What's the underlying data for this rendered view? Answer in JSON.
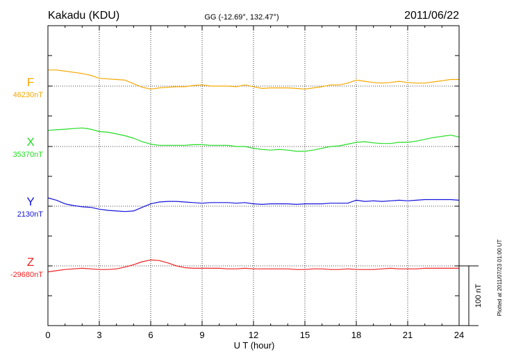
{
  "header": {
    "station": "Kakadu (KDU)",
    "coords": "GG (-12.69°, 132.47°)",
    "date": "2011/06/22"
  },
  "footer": {
    "plotted": "Plotted at 2011/07/23 01:00 UT"
  },
  "scale_bar": {
    "label": "100 nT",
    "nT": 100
  },
  "chart_data": {
    "type": "line",
    "xlabel": "U T (hour)",
    "xlim": [
      0,
      24
    ],
    "xticks": [
      0,
      3,
      6,
      9,
      12,
      15,
      18,
      21,
      24
    ],
    "grid": true,
    "series": [
      {
        "name": "F",
        "baseline_label": "46230nT",
        "baseline_nT": 46230,
        "color": "#f5a800",
        "x": [
          0,
          0.5,
          1,
          1.5,
          2,
          2.5,
          3,
          3.5,
          4,
          4.5,
          5,
          5.5,
          6,
          6.5,
          7,
          7.5,
          8,
          8.5,
          9,
          9.5,
          10,
          10.5,
          11,
          11.5,
          12,
          12.5,
          13,
          13.5,
          14,
          14.5,
          15,
          15.5,
          16,
          16.5,
          17,
          17.5,
          18,
          18.5,
          19,
          19.5,
          20,
          20.5,
          21,
          21.5,
          22,
          22.5,
          23,
          23.5,
          24
        ],
        "y": [
          46257,
          46257,
          46255,
          46253,
          46251,
          46248,
          46243,
          46242,
          46241,
          46240,
          46234,
          46228,
          46225,
          46227,
          46228,
          46229,
          46229,
          46231,
          46232,
          46230,
          46230,
          46230,
          46229,
          46232,
          46229,
          46226,
          46227,
          46227,
          46227,
          46226,
          46225,
          46227,
          46229,
          46232,
          46232,
          46235,
          46240,
          46238,
          46236,
          46235,
          46236,
          46238,
          46236,
          46235,
          46235,
          46237,
          46239,
          46241,
          46241
        ]
      },
      {
        "name": "X",
        "baseline_label": "35370nT",
        "baseline_nT": 35370,
        "color": "#22dd22",
        "x": [
          0,
          0.5,
          1,
          1.5,
          2,
          2.5,
          3,
          3.5,
          4,
          4.5,
          5,
          5.5,
          6,
          6.5,
          7,
          7.5,
          8,
          8.5,
          9,
          9.5,
          10,
          10.5,
          11,
          11.5,
          12,
          12.5,
          13,
          13.5,
          14,
          14.5,
          15,
          15.5,
          16,
          16.5,
          17,
          17.5,
          18,
          18.5,
          19,
          19.5,
          20,
          20.5,
          21,
          21.5,
          22,
          22.5,
          23,
          23.5,
          24
        ],
        "y": [
          35397,
          35398,
          35399,
          35400,
          35401,
          35399,
          35395,
          35394,
          35391,
          35388,
          35384,
          35378,
          35374,
          35372,
          35372,
          35372,
          35372,
          35373,
          35373,
          35372,
          35372,
          35372,
          35370,
          35370,
          35367,
          35365,
          35364,
          35365,
          35364,
          35362,
          35362,
          35364,
          35367,
          35370,
          35371,
          35374,
          35377,
          35378,
          35376,
          35375,
          35375,
          35377,
          35377,
          35379,
          35382,
          35385,
          35387,
          35389,
          35386
        ]
      },
      {
        "name": "Y",
        "baseline_label": "2130nT",
        "baseline_nT": 2130,
        "color": "#1111dd",
        "x": [
          0,
          0.5,
          1,
          1.5,
          2,
          2.5,
          3,
          3.5,
          4,
          4.5,
          5,
          5.5,
          6,
          6.5,
          7,
          7.5,
          8,
          8.5,
          9,
          9.5,
          10,
          10.5,
          11,
          11.5,
          12,
          12.5,
          13,
          13.5,
          14,
          14.5,
          15,
          15.5,
          16,
          16.5,
          17,
          17.5,
          18,
          18.5,
          19,
          19.5,
          20,
          20.5,
          21,
          21.5,
          22,
          22.5,
          23,
          23.5,
          24
        ],
        "y": [
          2144,
          2140,
          2134,
          2131,
          2129,
          2128,
          2125,
          2123,
          2122,
          2121,
          2122,
          2128,
          2134,
          2137,
          2138,
          2138,
          2137,
          2136,
          2135,
          2136,
          2136,
          2136,
          2135,
          2136,
          2134,
          2133,
          2134,
          2134,
          2134,
          2133,
          2134,
          2134,
          2134,
          2135,
          2135,
          2135,
          2140,
          2138,
          2139,
          2138,
          2139,
          2140,
          2139,
          2140,
          2141,
          2141,
          2141,
          2141,
          2140
        ]
      },
      {
        "name": "Z",
        "baseline_label": "-29680nT",
        "baseline_nT": -29680,
        "color": "#ee2222",
        "x": [
          0,
          0.5,
          1,
          1.5,
          2,
          2.5,
          3,
          3.5,
          4,
          4.5,
          5,
          5.5,
          6,
          6.5,
          7,
          7.5,
          8,
          8.5,
          9,
          9.5,
          10,
          10.5,
          11,
          11.5,
          12,
          12.5,
          13,
          13.5,
          14,
          14.5,
          15,
          15.5,
          16,
          16.5,
          17,
          17.5,
          18,
          18.5,
          19,
          19.5,
          20,
          20.5,
          21,
          21.5,
          22,
          22.5,
          23,
          23.5,
          24
        ],
        "y": [
          -29690,
          -29688,
          -29686,
          -29685,
          -29684,
          -29685,
          -29686,
          -29686,
          -29685,
          -29682,
          -29678,
          -29673,
          -29670,
          -29671,
          -29675,
          -29680,
          -29683,
          -29684,
          -29684,
          -29684,
          -29684,
          -29685,
          -29685,
          -29684,
          -29685,
          -29685,
          -29685,
          -29685,
          -29685,
          -29686,
          -29686,
          -29685,
          -29685,
          -29686,
          -29686,
          -29685,
          -29686,
          -29686,
          -29686,
          -29685,
          -29684,
          -29685,
          -29685,
          -29685,
          -29684,
          -29684,
          -29684,
          -29684,
          -29684
        ]
      }
    ]
  }
}
